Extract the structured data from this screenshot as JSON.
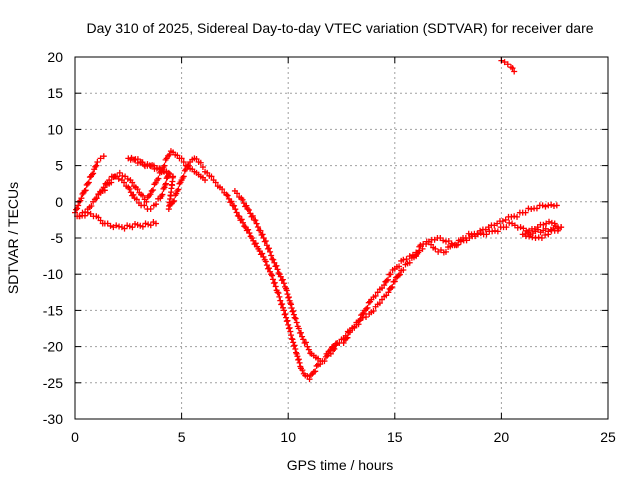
{
  "chart_data": {
    "type": "scatter",
    "title": "Day 310 of 2025, Sidereal Day-to-day VTEC variation (SDTVAR) for receiver dare",
    "xlabel": "GPS time / hours",
    "ylabel": "SDTVAR / TECUs",
    "xlim": [
      0,
      25
    ],
    "ylim": [
      -30,
      20
    ],
    "xticks": [
      0,
      5,
      10,
      15,
      20,
      25
    ],
    "yticks": [
      20,
      15,
      10,
      5,
      0,
      -5,
      -10,
      -15,
      -20,
      -25,
      -30
    ],
    "x_tick_labels": [
      "0",
      "5",
      "10",
      "15",
      "20",
      "25"
    ],
    "y_tick_labels": [
      "20",
      "15",
      "10",
      "5",
      "0",
      "-5",
      "-10",
      "-15",
      "-20",
      "-25",
      "-30"
    ],
    "grid": true,
    "marker": "+",
    "series": [
      {
        "name": "SDTVAR",
        "color": "#ff0000",
        "x": [
          0.0,
          0.15,
          0.3,
          0.45,
          0.6,
          0.75,
          0.9,
          1.05,
          1.2,
          1.35,
          0.1,
          0.35,
          0.6,
          0.85,
          1.1,
          1.35,
          1.6,
          1.85,
          2.1,
          2.35,
          2.6,
          2.85,
          3.1,
          3.35,
          3.6,
          3.85,
          4.1,
          4.3,
          4.5,
          4.7,
          4.9,
          5.1,
          5.3,
          5.5,
          5.7,
          5.9,
          6.1,
          1.0,
          1.3,
          1.6,
          1.9,
          2.2,
          2.5,
          2.8,
          3.1,
          3.4,
          3.7,
          4.0,
          4.2,
          4.4,
          2.5,
          2.8,
          3.1,
          3.4,
          3.7,
          4.0,
          4.3,
          4.6,
          4.4,
          4.6,
          4.8,
          5.0,
          5.2,
          5.4,
          5.6,
          5.8,
          6.0,
          6.2,
          6.4,
          6.5,
          6.8,
          7.1,
          7.4,
          7.7,
          8.0,
          8.3,
          8.6,
          8.9,
          9.2,
          9.5,
          9.8,
          10.0,
          10.2,
          10.4,
          10.6,
          10.8,
          11.0,
          11.2,
          11.4,
          11.6,
          7.5,
          7.8,
          8.1,
          8.4,
          8.7,
          9.0,
          9.3,
          9.6,
          9.9,
          10.1,
          10.3,
          10.5,
          10.7,
          10.9,
          11.1,
          11.3,
          11.5,
          11.7,
          11.9,
          12.1,
          12.3,
          11.8,
          12.1,
          12.4,
          12.7,
          13.0,
          13.3,
          13.6,
          13.9,
          14.2,
          14.5,
          14.8,
          15.1,
          15.4,
          15.7,
          16.0,
          16.3,
          12.6,
          12.9,
          13.2,
          13.5,
          13.8,
          14.1,
          14.4,
          14.7,
          15.0,
          15.3,
          15.6,
          16.0,
          16.2,
          16.6,
          17.0,
          17.4,
          17.8,
          18.2,
          18.6,
          19.0,
          19.4,
          19.8,
          20.2,
          20.6,
          21.0,
          21.4,
          21.8,
          22.2,
          22.6,
          16.5,
          16.9,
          17.3,
          17.7,
          18.1,
          18.5,
          18.9,
          19.3,
          19.7,
          20.1,
          20.5,
          20.9,
          21.3,
          21.7,
          22.1,
          22.5,
          22.8,
          21.0,
          21.3,
          21.6,
          21.9,
          22.2,
          22.5,
          22.8,
          0.2,
          0.6,
          1.0,
          1.4,
          1.8,
          2.2,
          3.8,
          20.0,
          20.15,
          20.3,
          20.45,
          20.6
        ],
        "y": [
          -1.5,
          -0.5,
          0.5,
          1.5,
          2.5,
          3.5,
          4.5,
          5.5,
          6.0,
          6.3,
          -2.0,
          -1.5,
          -1.0,
          0.0,
          1.0,
          2.0,
          3.0,
          3.5,
          4.0,
          3.5,
          3.0,
          2.0,
          1.0,
          0.0,
          1.5,
          3.0,
          4.5,
          6.0,
          7.0,
          6.5,
          6.0,
          5.5,
          5.0,
          4.5,
          4.0,
          3.5,
          3.0,
          0.5,
          1.5,
          2.5,
          3.5,
          3.0,
          2.0,
          0.5,
          -0.5,
          -1.0,
          -0.5,
          0.5,
          2.0,
          4.0,
          6.0,
          5.8,
          5.5,
          5.2,
          5.0,
          4.5,
          4.0,
          3.5,
          -1.0,
          0.0,
          1.5,
          3.0,
          4.5,
          5.5,
          6.0,
          5.5,
          4.8,
          4.0,
          3.5,
          3.0,
          2.0,
          1.0,
          -0.5,
          -2.0,
          -3.5,
          -5.0,
          -6.5,
          -8.0,
          -10.0,
          -12.5,
          -15.0,
          -17.0,
          -19.0,
          -21.0,
          -23.0,
          -24.0,
          -24.5,
          -23.5,
          -22.5,
          -22.0,
          1.5,
          0.5,
          -1.0,
          -2.5,
          -4.0,
          -6.0,
          -8.0,
          -10.0,
          -12.0,
          -14.0,
          -16.0,
          -17.5,
          -19.0,
          -20.0,
          -21.0,
          -21.5,
          -22.0,
          -22.0,
          -21.0,
          -20.5,
          -19.5,
          -21.0,
          -20.0,
          -19.5,
          -18.5,
          -17.5,
          -16.5,
          -15.0,
          -13.5,
          -12.5,
          -11.5,
          -10.0,
          -9.0,
          -8.0,
          -7.5,
          -7.0,
          -6.5,
          -19.5,
          -18.0,
          -17.0,
          -16.0,
          -15.5,
          -14.5,
          -13.5,
          -12.5,
          -11.0,
          -9.5,
          -8.5,
          -7.5,
          -6.0,
          -5.5,
          -5.0,
          -5.5,
          -6.0,
          -5.0,
          -4.5,
          -4.0,
          -3.5,
          -3.0,
          -2.5,
          -2.0,
          -1.5,
          -1.0,
          -0.5,
          -0.5,
          -0.5,
          -5.5,
          -6.5,
          -7.0,
          -6.0,
          -5.5,
          -5.0,
          -4.5,
          -4.5,
          -4.0,
          -3.5,
          -3.0,
          -3.5,
          -4.0,
          -3.5,
          -3.0,
          -3.0,
          -3.5,
          -4.5,
          -4.8,
          -5.0,
          -5.0,
          -4.5,
          -4.0,
          -3.5,
          -2.0,
          -1.5,
          -2.0,
          -3.0,
          -3.5,
          -3.5,
          -3.0,
          19.5,
          19.3,
          19.0,
          18.6,
          18.0
        ]
      }
    ]
  }
}
